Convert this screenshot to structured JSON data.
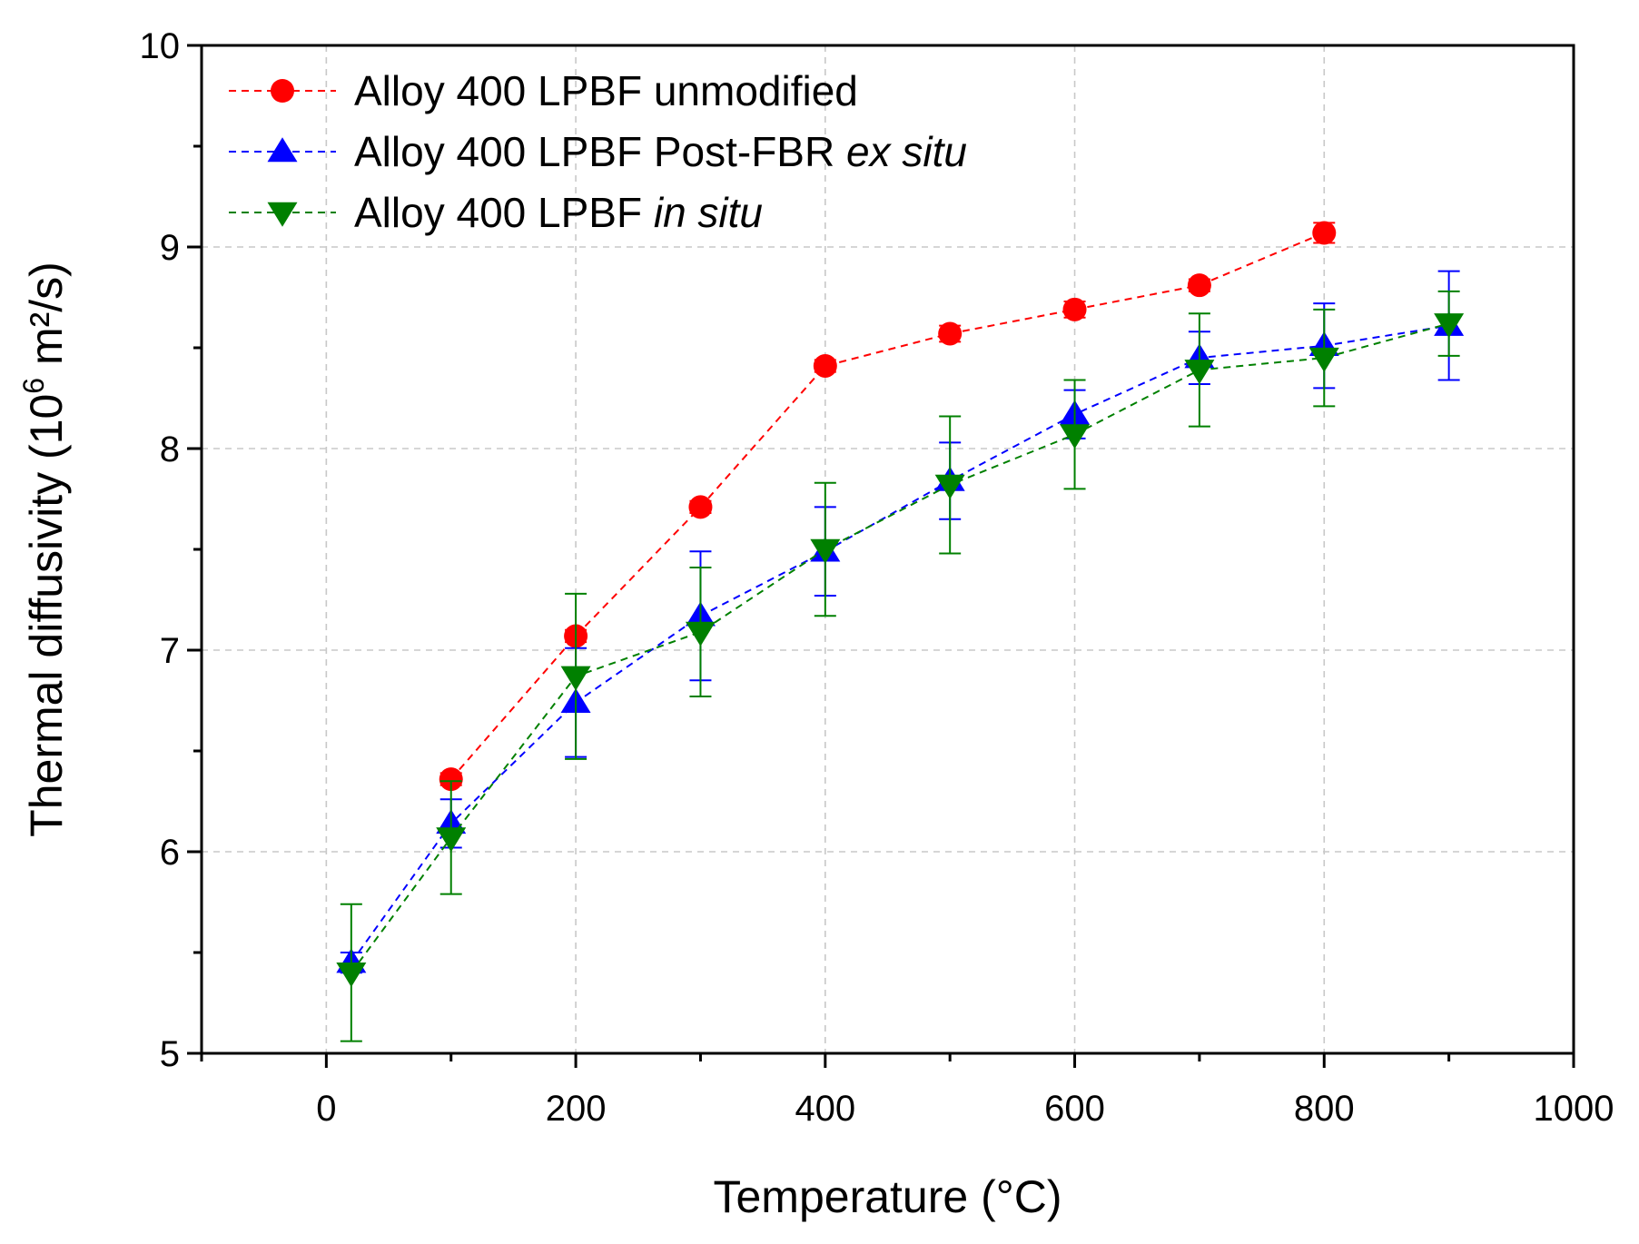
{
  "chart_data": {
    "type": "line",
    "title": "",
    "xlabel": "Temperature (°C)",
    "ylabel": {
      "prefix": "Thermal diffusivity (10",
      "superscript": "6",
      "suffix": " m²/s)"
    },
    "xlim": [
      -100,
      1000
    ],
    "ylim": [
      5,
      10
    ],
    "xticks": [
      0,
      200,
      400,
      600,
      800,
      1000
    ],
    "xticks_minor": [
      -100,
      100,
      300,
      500,
      700,
      900
    ],
    "yticks": [
      5,
      6,
      7,
      8,
      9,
      10
    ],
    "yticks_minor": [
      5.5,
      6.5,
      7.5,
      8.5,
      9.5
    ],
    "grid": true,
    "legend_position": "top-left",
    "series": [
      {
        "name": "unmodified",
        "legend_label": [
          {
            "text": "Alloy 400 LPBF unmodified",
            "italic": false
          }
        ],
        "color": "#ff0000",
        "marker": "circle",
        "x": [
          100,
          200,
          300,
          400,
          500,
          600,
          700,
          800
        ],
        "y": [
          6.36,
          7.07,
          7.71,
          8.41,
          8.57,
          8.69,
          8.81,
          9.07
        ],
        "err": [
          0.03,
          0.03,
          0.03,
          0.03,
          0.04,
          0.04,
          0.03,
          0.05
        ]
      },
      {
        "name": "post-fbr-ex-situ",
        "legend_label": [
          {
            "text": "Alloy 400 LPBF Post-FBR ",
            "italic": false
          },
          {
            "text": "ex situ",
            "italic": true
          }
        ],
        "color": "#0000ff",
        "marker": "triangle-up",
        "x": [
          20,
          100,
          200,
          300,
          400,
          500,
          600,
          700,
          800,
          900
        ],
        "y": [
          5.45,
          6.14,
          6.74,
          7.17,
          7.49,
          7.84,
          8.17,
          8.45,
          8.51,
          8.61
        ],
        "err": [
          0.05,
          0.12,
          0.27,
          0.32,
          0.22,
          0.19,
          0.12,
          0.13,
          0.21,
          0.27
        ]
      },
      {
        "name": "in-situ",
        "legend_label": [
          {
            "text": "Alloy 400 LPBF ",
            "italic": false
          },
          {
            "text": "in situ",
            "italic": true
          }
        ],
        "color": "#008000",
        "marker": "triangle-down",
        "x": [
          20,
          100,
          200,
          300,
          400,
          500,
          600,
          700,
          800,
          900
        ],
        "y": [
          5.4,
          6.07,
          6.87,
          7.09,
          7.5,
          7.82,
          8.07,
          8.39,
          8.45,
          8.62
        ],
        "err": [
          0.34,
          0.28,
          0.41,
          0.32,
          0.33,
          0.34,
          0.27,
          0.28,
          0.24,
          0.16
        ]
      }
    ]
  }
}
